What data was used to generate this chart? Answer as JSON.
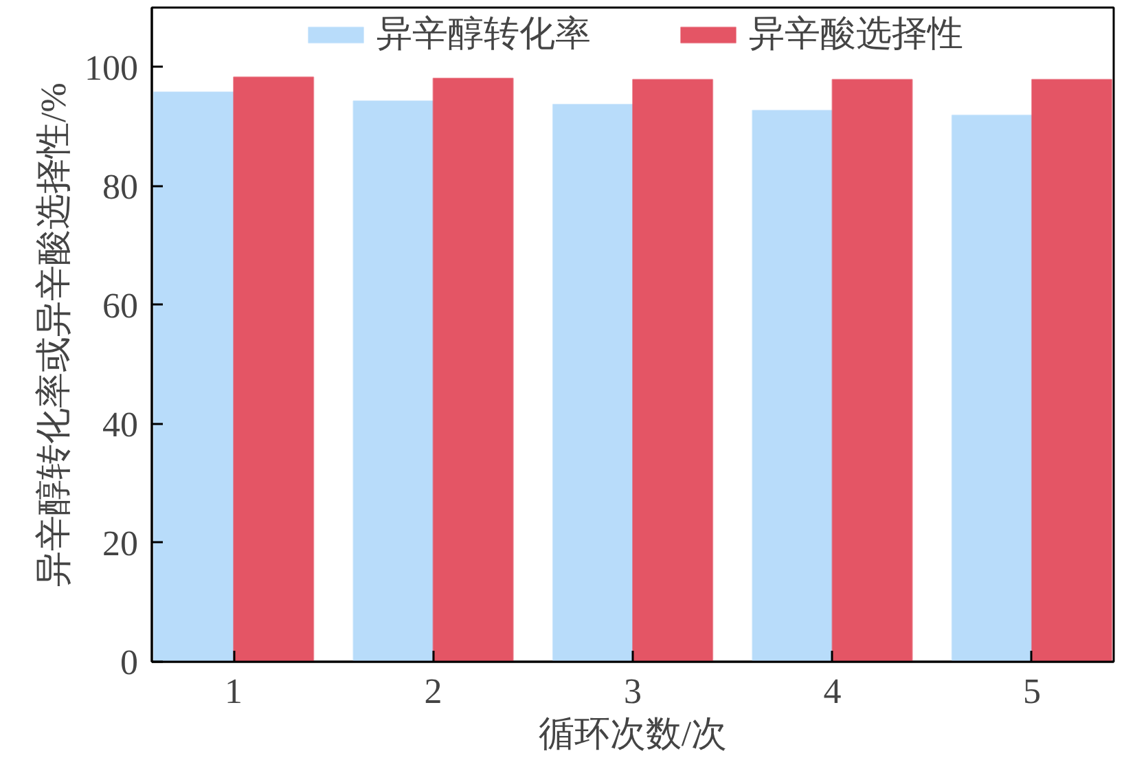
{
  "chart_data": {
    "type": "bar",
    "xlabel": "循环次数/次",
    "ylabel": "异辛醇转化率或异辛酸选择性/%",
    "categories": [
      "1",
      "2",
      "3",
      "4",
      "5"
    ],
    "series": [
      {
        "name": "异辛醇转化率",
        "color": "#b8dcfa",
        "values": [
          95.8,
          94.3,
          93.7,
          92.7,
          91.9
        ]
      },
      {
        "name": "异辛酸选择性",
        "color": "#e45565",
        "values": [
          98.3,
          98.1,
          97.9,
          97.9,
          97.9
        ]
      }
    ],
    "ylim": [
      0,
      110
    ],
    "yticks": [
      0,
      20,
      40,
      60,
      80,
      100
    ],
    "grid": false,
    "legend": "top"
  }
}
